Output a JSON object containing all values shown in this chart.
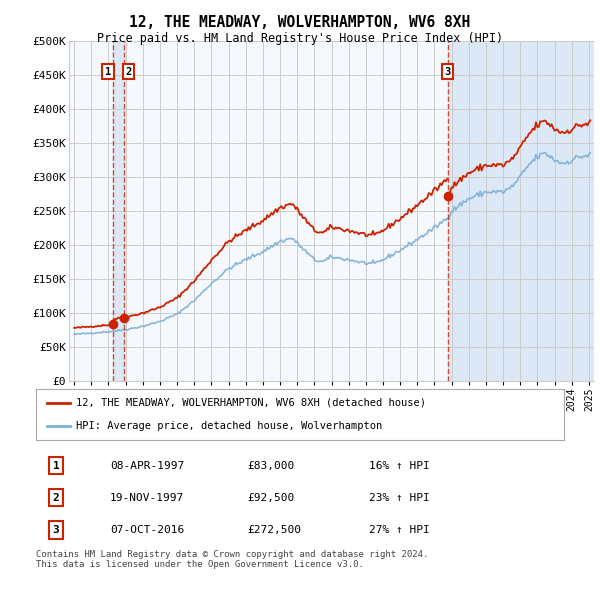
{
  "title": "12, THE MEADWAY, WOLVERHAMPTON, WV6 8XH",
  "subtitle": "Price paid vs. HM Land Registry's House Price Index (HPI)",
  "legend_line1": "12, THE MEADWAY, WOLVERHAMPTON, WV6 8XH (detached house)",
  "legend_line2": "HPI: Average price, detached house, Wolverhampton",
  "table": [
    {
      "num": "1",
      "date": "08-APR-1997",
      "price": "£83,000",
      "hpi": "16% ↑ HPI"
    },
    {
      "num": "2",
      "date": "19-NOV-1997",
      "price": "£92,500",
      "hpi": "23% ↑ HPI"
    },
    {
      "num": "3",
      "date": "07-OCT-2016",
      "price": "£272,500",
      "hpi": "27% ↑ HPI"
    }
  ],
  "footer": "Contains HM Land Registry data © Crown copyright and database right 2024.\nThis data is licensed under the Open Government Licence v3.0.",
  "sale_points": [
    {
      "year": 1997.27,
      "price": 83000,
      "label": "1"
    },
    {
      "year": 1997.88,
      "price": 92500,
      "label": "2"
    },
    {
      "year": 2016.77,
      "price": 272500,
      "label": "3"
    }
  ],
  "vlines": [
    1997.27,
    1997.88,
    2016.77
  ],
  "hpi_color": "#7bafd4",
  "price_color": "#cc2200",
  "bg_color": "#f5f8fd",
  "grid_color": "#cccccc",
  "span_color": "#dce8f5",
  "ylim": [
    0,
    500000
  ],
  "xlim": [
    1994.7,
    2025.3
  ]
}
